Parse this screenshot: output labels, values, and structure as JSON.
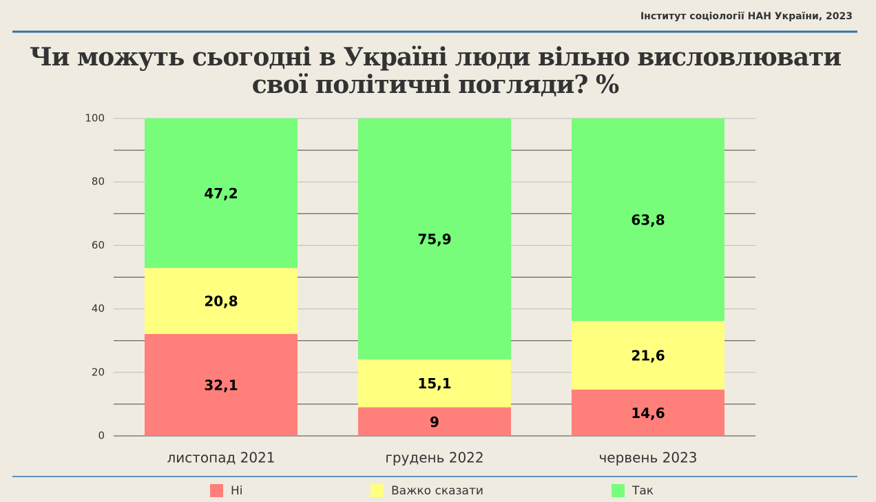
{
  "chart_data": {
    "type": "stacked_bar",
    "source": "Інститут соціології НАН України, 2023",
    "title": [
      "Чи можуть сьогодні в Україні люди вільно висловлювати",
      "свої політичні погляди? %"
    ],
    "categories": [
      "листопад 2021",
      "грудень 2022",
      "червень 2023"
    ],
    "series": [
      {
        "name": "Ні",
        "color": "#ff7f7a",
        "values": [
          32.1,
          9,
          14.6
        ],
        "value_labels": [
          "32,1",
          "9",
          "14,6"
        ]
      },
      {
        "name": "Важко сказати",
        "color": "#ffff80",
        "values": [
          20.8,
          15.1,
          21.6
        ],
        "value_labels": [
          "20,8",
          "15,1",
          "21,6"
        ]
      },
      {
        "name": "Так",
        "color": "#77fd7a",
        "values": [
          47.2,
          75.9,
          63.8
        ],
        "value_labels": [
          "47,2",
          "75,9",
          "63,8"
        ]
      }
    ],
    "ylim": [
      0,
      100
    ],
    "yticks": [
      0,
      20,
      40,
      60,
      80,
      100
    ],
    "minor_yticks": [
      10,
      30,
      50,
      70,
      90
    ],
    "grid": true,
    "legend": "bottom"
  }
}
